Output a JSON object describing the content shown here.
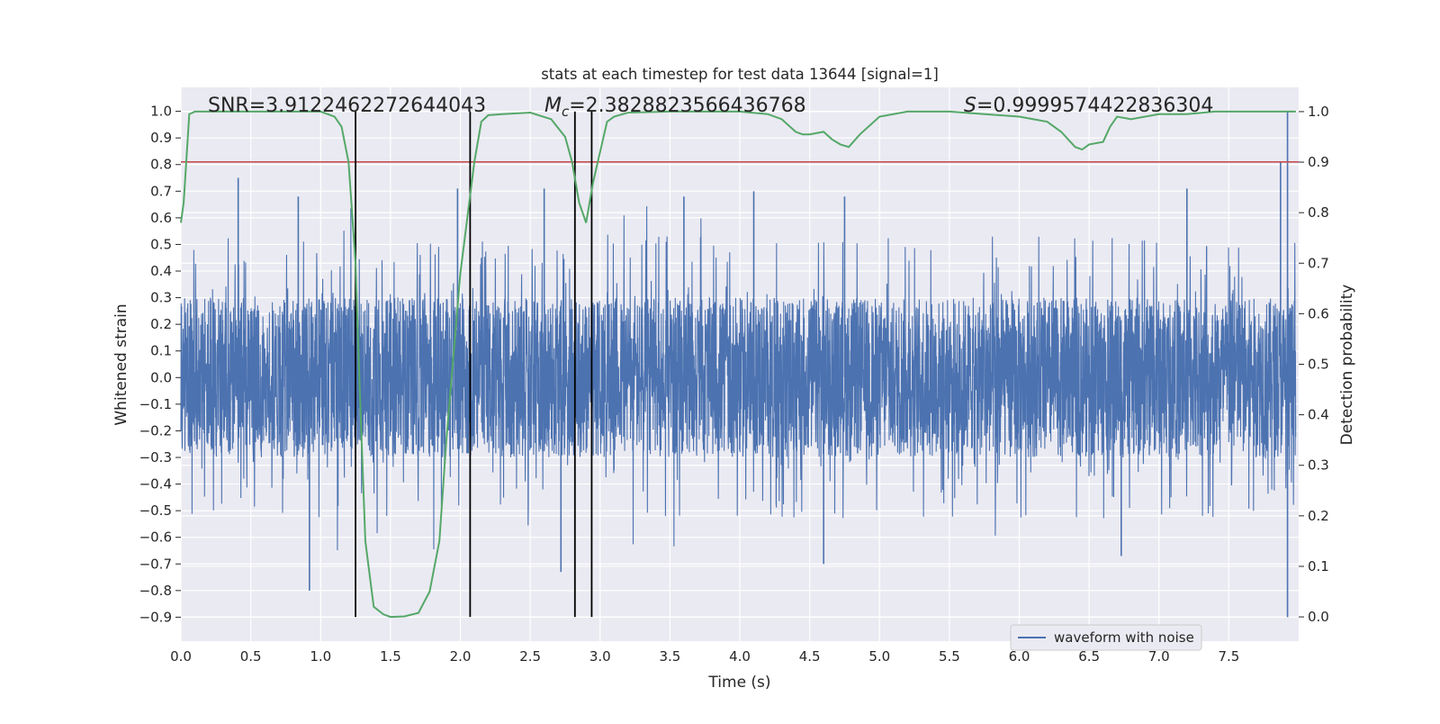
{
  "chart_data": {
    "type": "line",
    "title": "stats at each timestep for test data 13644 [signal=1]",
    "xlabel": "Time (s)",
    "ylabel_left": "Whitened strain",
    "ylabel_right": "Detection probability",
    "xlim": [
      0.0,
      8.0
    ],
    "ylim_left": [
      -0.99,
      1.09
    ],
    "ylim_right": [
      -0.048,
      1.048
    ],
    "x_ticks": [
      "0.0",
      "0.5",
      "1.0",
      "1.5",
      "2.0",
      "2.5",
      "3.0",
      "3.5",
      "4.0",
      "4.5",
      "5.0",
      "5.5",
      "6.0",
      "6.5",
      "7.0",
      "7.5"
    ],
    "y_ticks_left": [
      "1.0",
      "0.9",
      "0.8",
      "0.7",
      "0.6",
      "0.5",
      "0.4",
      "0.3",
      "0.2",
      "0.1",
      "0.0",
      "−0.1",
      "−0.2",
      "−0.3",
      "−0.4",
      "−0.5",
      "−0.6",
      "−0.7",
      "−0.8",
      "−0.9"
    ],
    "y_ticks_right": [
      "1.0",
      "0.9",
      "0.8",
      "0.7",
      "0.6",
      "0.5",
      "0.4",
      "0.3",
      "0.2",
      "0.1",
      "0.0"
    ],
    "annotations": {
      "snr": "SNR=3.9122462272644043",
      "mc_symbol": "M",
      "mc_sub": "c",
      "mc_value": "=2.3828823566436768",
      "s_symbol": "S",
      "s_value": "=0.9999574422836304"
    },
    "threshold_left": 0.81,
    "vertical_lines_s": [
      1.25,
      2.07,
      2.82,
      2.94
    ],
    "series": [
      {
        "name": "waveform with noise",
        "axis": "left",
        "color": "#4c72b0",
        "style": "dense noise, amplitude mostly within ±0.45, peaks near ±0.7; spikes to 1.0 and -0.9 near t=7.9",
        "peaks": [
          {
            "x": 0.41,
            "y": 0.75
          },
          {
            "x": 0.84,
            "y": 0.68
          },
          {
            "x": 0.92,
            "y": -0.8
          },
          {
            "x": 1.98,
            "y": 0.71
          },
          {
            "x": 2.6,
            "y": 0.71
          },
          {
            "x": 2.72,
            "y": -0.73
          },
          {
            "x": 3.6,
            "y": 0.68
          },
          {
            "x": 4.1,
            "y": 0.7
          },
          {
            "x": 4.75,
            "y": 0.68
          },
          {
            "x": 4.6,
            "y": -0.7
          },
          {
            "x": 7.2,
            "y": 0.71
          },
          {
            "x": 6.73,
            "y": -0.67
          },
          {
            "x": 7.87,
            "y": 0.81
          },
          {
            "x": 7.92,
            "y": 1.0
          },
          {
            "x": 7.92,
            "y": -0.9
          }
        ]
      },
      {
        "axis": "right",
        "color": "#55a868",
        "x": [
          0.0,
          0.02,
          0.06,
          0.1,
          0.2,
          0.4,
          0.6,
          0.8,
          1.0,
          1.1,
          1.15,
          1.2,
          1.25,
          1.28,
          1.32,
          1.38,
          1.45,
          1.5,
          1.6,
          1.7,
          1.78,
          1.85,
          1.9,
          2.0,
          2.1,
          2.15,
          2.2,
          2.3,
          2.5,
          2.65,
          2.75,
          2.8,
          2.85,
          2.9,
          2.95,
          3.0,
          3.05,
          3.1,
          3.2,
          3.5,
          4.0,
          4.2,
          4.3,
          4.4,
          4.45,
          4.5,
          4.6,
          4.66,
          4.72,
          4.78,
          4.86,
          5.0,
          5.2,
          5.5,
          6.0,
          6.2,
          6.3,
          6.4,
          6.45,
          6.5,
          6.6,
          6.65,
          6.7,
          6.8,
          6.9,
          7.0,
          7.2,
          7.4,
          7.6,
          7.8,
          8.0
        ],
        "y": [
          0.78,
          0.82,
          0.995,
          1.0,
          1.0,
          1.0,
          1.0,
          1.0,
          1.0,
          0.99,
          0.97,
          0.9,
          0.7,
          0.45,
          0.15,
          0.02,
          0.005,
          0.0,
          0.001,
          0.008,
          0.05,
          0.15,
          0.35,
          0.68,
          0.9,
          0.98,
          0.993,
          0.995,
          0.998,
          0.985,
          0.95,
          0.9,
          0.82,
          0.78,
          0.86,
          0.92,
          0.98,
          0.99,
          0.998,
          1.0,
          1.0,
          0.995,
          0.985,
          0.96,
          0.955,
          0.955,
          0.96,
          0.945,
          0.935,
          0.93,
          0.955,
          0.99,
          1.0,
          1.0,
          0.99,
          0.98,
          0.96,
          0.93,
          0.925,
          0.935,
          0.94,
          0.97,
          0.99,
          0.985,
          0.99,
          0.995,
          0.995,
          1.0,
          1.0,
          1.0,
          1.0
        ]
      },
      {
        "axis": "left",
        "color": "#c44e52",
        "type": "hline",
        "y": 0.81
      }
    ],
    "legend": {
      "placement": "lower-right",
      "entries": [
        "waveform with noise"
      ]
    },
    "grid": true,
    "background_color": "#eaeaf2"
  }
}
